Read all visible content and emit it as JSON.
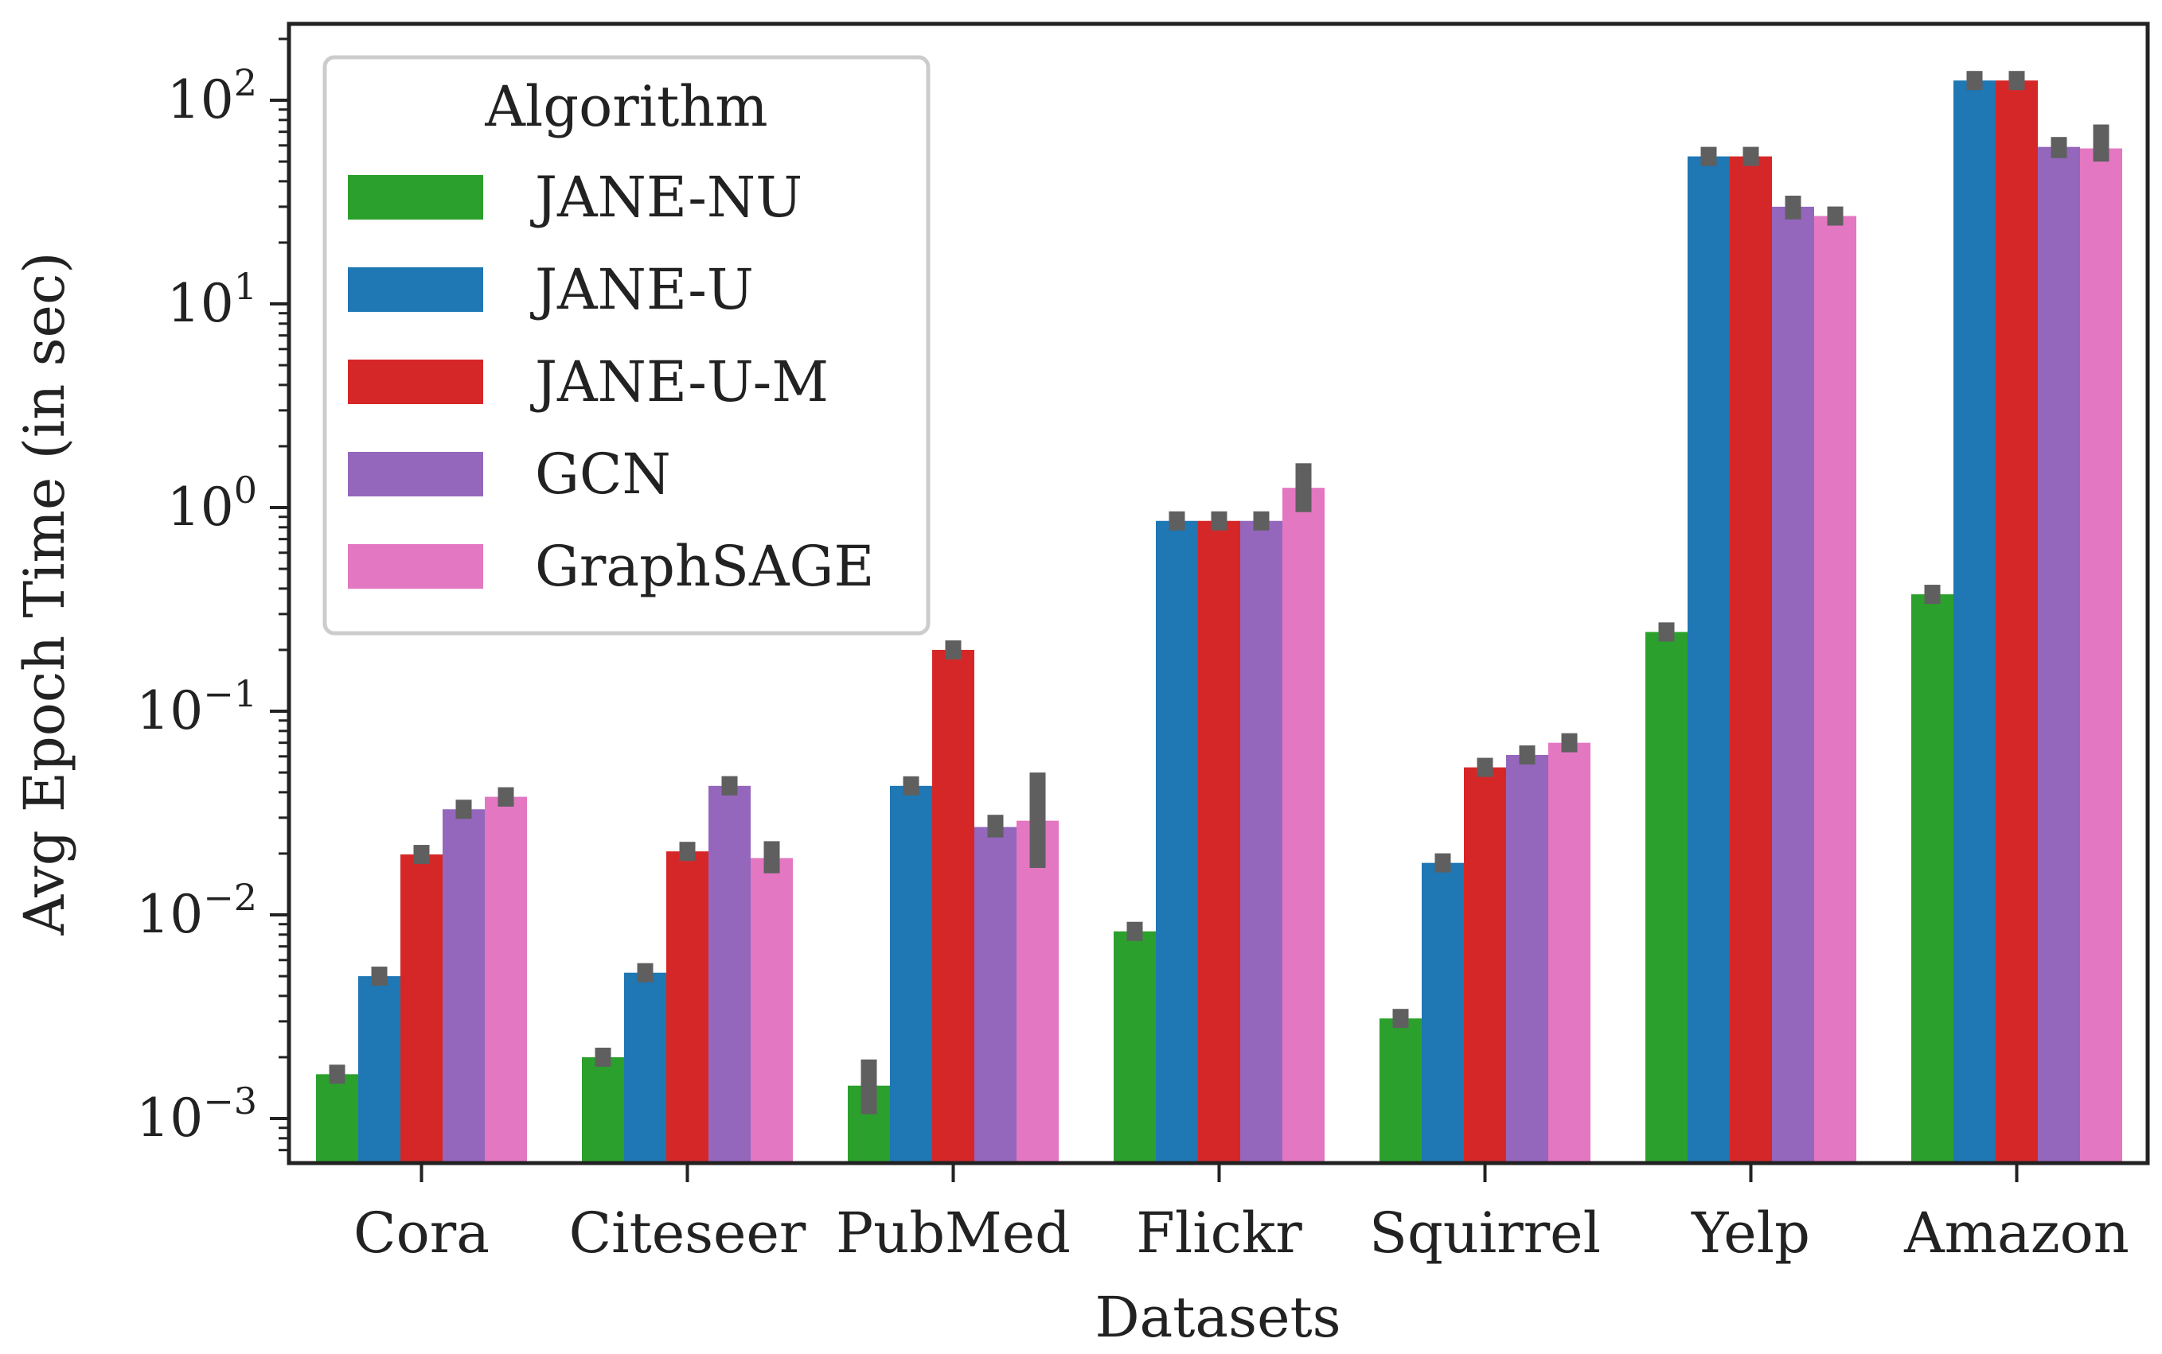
{
  "chart_data": {
    "type": "bar",
    "scale": "log",
    "title": "",
    "xlabel": "Datasets",
    "ylabel": "Avg Epoch Time (in sec)",
    "ylim": [
      0.0006,
      200
    ],
    "yticks": [
      {
        "value": 0.001,
        "base": "10",
        "exp": "−3"
      },
      {
        "value": 0.01,
        "base": "10",
        "exp": "−2"
      },
      {
        "value": 0.1,
        "base": "10",
        "exp": "−1"
      },
      {
        "value": 1,
        "base": "10",
        "exp": "0"
      },
      {
        "value": 10,
        "base": "10",
        "exp": "1"
      },
      {
        "value": 100,
        "base": "10",
        "exp": "2"
      }
    ],
    "categories": [
      "Cora",
      "Citeseer",
      "PubMed",
      "Flickr",
      "Squirrel",
      "Yelp",
      "Amazon"
    ],
    "legend": {
      "title": "Algorithm",
      "position": "top-left"
    },
    "series": [
      {
        "name": "JANE-NU",
        "color": "#2ca02c",
        "values": [
          0.00165,
          0.002,
          0.00145,
          0.0083,
          0.0031,
          0.245,
          0.375
        ],
        "err_low": [
          0.00155,
          0.00188,
          0.00105,
          0.0079,
          0.0029,
          0.232,
          0.355
        ],
        "err_high": [
          0.00175,
          0.00212,
          0.00195,
          0.0087,
          0.0033,
          0.258,
          0.395
        ]
      },
      {
        "name": "JANE-U",
        "color": "#1f77b4",
        "values": [
          0.005,
          0.0052,
          0.043,
          0.86,
          0.018,
          53,
          125
        ],
        "err_low": [
          0.0048,
          0.005,
          0.041,
          0.83,
          0.0172,
          51,
          120
        ],
        "err_high": [
          0.0053,
          0.0054,
          0.045,
          0.89,
          0.019,
          55,
          130
        ]
      },
      {
        "name": "JANE-U-M",
        "color": "#d62728",
        "values": [
          0.0198,
          0.0205,
          0.2,
          0.86,
          0.053,
          53,
          125
        ],
        "err_low": [
          0.0186,
          0.0194,
          0.19,
          0.83,
          0.05,
          51,
          120
        ],
        "err_high": [
          0.0212,
          0.0216,
          0.21,
          0.89,
          0.056,
          55,
          130
        ]
      },
      {
        "name": "GCN",
        "color": "#9467bd",
        "values": [
          0.033,
          0.043,
          0.027,
          0.86,
          0.061,
          30,
          59
        ],
        "err_low": [
          0.031,
          0.039,
          0.024,
          0.8,
          0.056,
          26,
          52
        ],
        "err_high": [
          0.035,
          0.048,
          0.031,
          0.92,
          0.067,
          34,
          66
        ]
      },
      {
        "name": "GraphSAGE",
        "color": "#e377c2",
        "values": [
          0.038,
          0.019,
          0.029,
          1.25,
          0.07,
          27,
          58
        ],
        "err_low": [
          0.034,
          0.016,
          0.017,
          0.95,
          0.065,
          25,
          50
        ],
        "err_high": [
          0.042,
          0.023,
          0.05,
          1.65,
          0.076,
          29,
          76
        ]
      }
    ]
  }
}
